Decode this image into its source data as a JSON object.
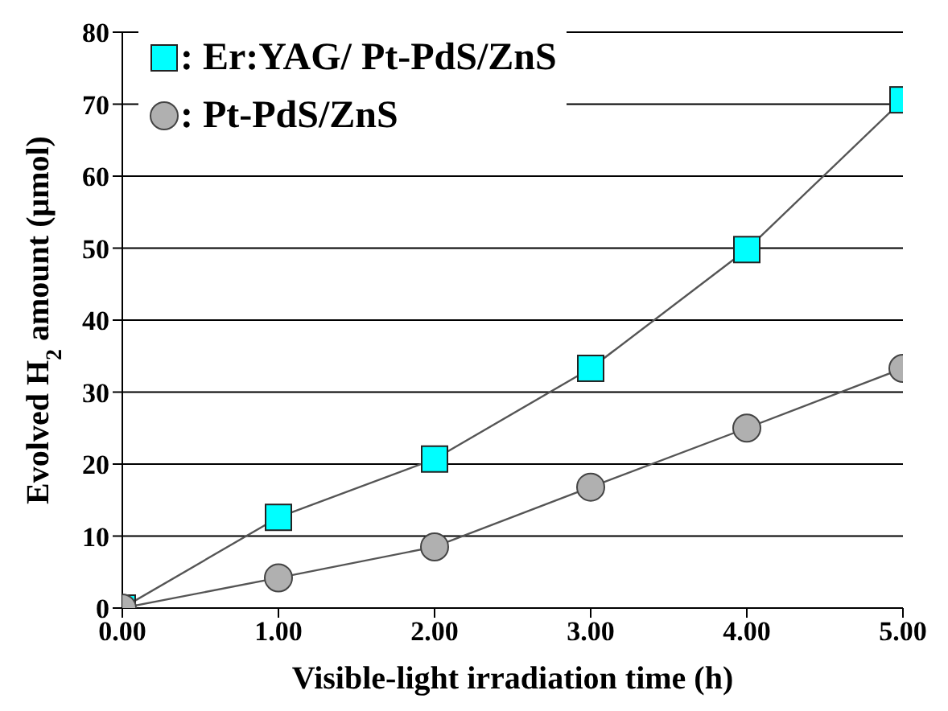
{
  "chart_data": {
    "type": "line",
    "xlabel": "Visible-light irradiation time (h)",
    "ylabel": "Evolved H$_{2}$ amount (μmol)",
    "x": [
      0,
      1,
      2,
      3,
      4,
      5
    ],
    "series": [
      {
        "name": ": Er:YAG/ Pt-PdS/ZnS",
        "color": "#00ffff",
        "marker": "square",
        "values": [
          0,
          12.6,
          20.7,
          33.3,
          49.8,
          70.6
        ]
      },
      {
        "name": ": Pt-PdS/ZnS",
        "color": "#b0b0b0",
        "marker": "circle",
        "values": [
          0,
          4.2,
          8.5,
          16.8,
          25,
          33.3
        ]
      }
    ],
    "xlim": [
      0,
      5
    ],
    "xticks": [
      {
        "value": 0,
        "label": "0.00"
      },
      {
        "value": 1,
        "label": "1.00"
      },
      {
        "value": 2,
        "label": "2.00"
      },
      {
        "value": 3,
        "label": "3.00"
      },
      {
        "value": 4,
        "label": "4.00"
      },
      {
        "value": 5,
        "label": "5.00"
      }
    ],
    "ylim": [
      0,
      80
    ],
    "yticks": [
      0,
      10,
      20,
      30,
      40,
      50,
      60,
      70,
      80
    ],
    "grid": "y",
    "legend": "top left",
    "line_style": "solid"
  }
}
